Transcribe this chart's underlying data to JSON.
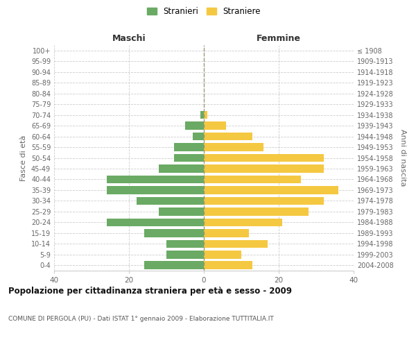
{
  "age_groups": [
    "0-4",
    "5-9",
    "10-14",
    "15-19",
    "20-24",
    "25-29",
    "30-34",
    "35-39",
    "40-44",
    "45-49",
    "50-54",
    "55-59",
    "60-64",
    "65-69",
    "70-74",
    "75-79",
    "80-84",
    "85-89",
    "90-94",
    "95-99",
    "100+"
  ],
  "birth_years": [
    "2004-2008",
    "1999-2003",
    "1994-1998",
    "1989-1993",
    "1984-1988",
    "1979-1983",
    "1974-1978",
    "1969-1973",
    "1964-1968",
    "1959-1963",
    "1954-1958",
    "1949-1953",
    "1944-1948",
    "1939-1943",
    "1934-1938",
    "1929-1933",
    "1924-1928",
    "1919-1923",
    "1914-1918",
    "1909-1913",
    "≤ 1908"
  ],
  "maschi": [
    16,
    10,
    10,
    16,
    26,
    12,
    18,
    26,
    26,
    12,
    8,
    8,
    3,
    5,
    1,
    0,
    0,
    0,
    0,
    0,
    0
  ],
  "femmine": [
    13,
    10,
    17,
    12,
    21,
    28,
    32,
    36,
    26,
    32,
    32,
    16,
    13,
    6,
    1,
    0,
    0,
    0,
    0,
    0,
    0
  ],
  "maschi_color": "#6aaa64",
  "femmine_color": "#f5c842",
  "bar_height": 0.75,
  "xlim": 40,
  "title": "Popolazione per cittadinanza straniera per età e sesso - 2009",
  "subtitle": "COMUNE DI PERGOLA (PU) - Dati ISTAT 1° gennaio 2009 - Elaborazione TUTTITALIA.IT",
  "xlabel_left": "Maschi",
  "xlabel_right": "Femmine",
  "ylabel_left": "Fasce di età",
  "ylabel_right": "Anni di nascita",
  "legend_stranieri": "Stranieri",
  "legend_straniere": "Straniere",
  "grid_color": "#cccccc",
  "background_color": "#ffffff",
  "axis_label_color": "#666666"
}
